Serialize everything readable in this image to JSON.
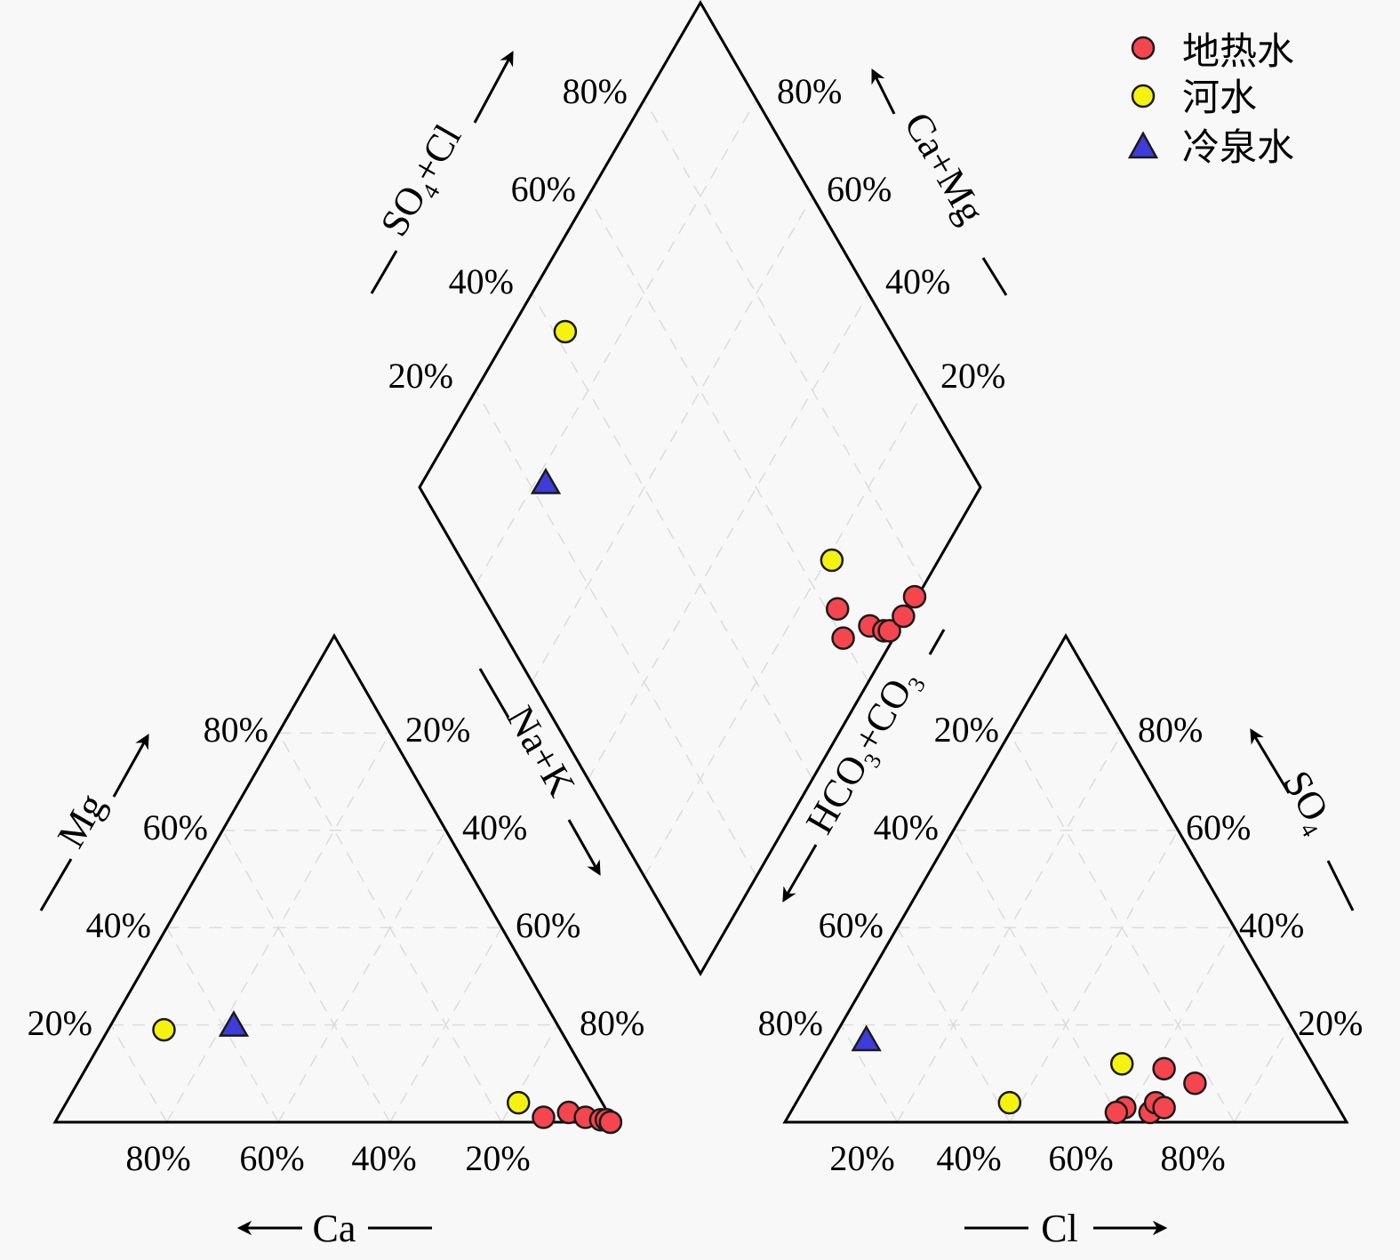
{
  "chart_data": {
    "type": "scatter",
    "subtype": "piper-trilinear",
    "title": "",
    "legend": {
      "placement": "top-right",
      "entries": [
        {
          "key": "geothermal",
          "label": "地热水",
          "marker": "circle",
          "color": "#f5454e"
        },
        {
          "key": "river",
          "label": "河水",
          "marker": "circle",
          "color": "#f4f20e"
        },
        {
          "key": "cold_spring",
          "label": "冷泉水",
          "marker": "triangle",
          "color": "#3d3ddb"
        }
      ]
    },
    "cation_triangle": {
      "axes": {
        "ca": {
          "label": "Ca",
          "direction": "left"
        },
        "mg": {
          "label": "Mg",
          "direction": "up"
        },
        "na_k": {
          "label": "Na+K",
          "direction": "down-right"
        }
      },
      "tick_labels_bottom": [
        "80%",
        "60%",
        "40%",
        "20%"
      ],
      "tick_labels_left": [
        "20%",
        "40%",
        "60%",
        "80%"
      ],
      "tick_labels_right": [
        "20%",
        "40%",
        "60%",
        "80%"
      ]
    },
    "anion_triangle": {
      "axes": {
        "cl": {
          "label": "Cl",
          "direction": "right"
        },
        "so4": {
          "label": "SO",
          "sub": "4",
          "direction": "up"
        },
        "hco3_co3": {
          "label": "HCO₃+CO₃",
          "direction": "down-left"
        }
      },
      "tick_labels_bottom": [
        "20%",
        "40%",
        "60%",
        "80%"
      ],
      "tick_labels_left": [
        "80%",
        "60%",
        "40%",
        "20%"
      ],
      "tick_labels_right": [
        "80%",
        "60%",
        "40%",
        "20%"
      ]
    },
    "diamond": {
      "axes": {
        "so4_cl": {
          "label": "SO₄+Cl",
          "direction": "up-right"
        },
        "ca_mg": {
          "label": "Ca+Mg",
          "direction": "up-left"
        }
      },
      "tick_labels_left": [
        "80%",
        "60%",
        "40%",
        "20%"
      ],
      "tick_labels_right": [
        "80%",
        "60%",
        "40%",
        "20%"
      ]
    },
    "axis_titles": {
      "ca": "Ca",
      "mg": "Mg",
      "na_k": "Na+K",
      "cl": "Cl",
      "so4": "SO",
      "so4_sub": "4",
      "hco3": "HCO",
      "hco3_sub": "3",
      "co3": "+CO",
      "co3_sub": "3",
      "so4cl_a": "SO",
      "so4cl_sub": "4",
      "so4cl_b": "+Cl",
      "camg": "Ca+Mg"
    },
    "series": [
      {
        "name": "地热水",
        "key": "geothermal",
        "samples": [
          {
            "ca": 12,
            "mg": 1,
            "na_k": 87,
            "hco3": 38,
            "so4": 3,
            "cl": 59
          },
          {
            "ca": 7,
            "mg": 2,
            "na_k": 91,
            "hco3": 40,
            "so4": 2,
            "cl": 58
          },
          {
            "ca": 4.5,
            "mg": 1,
            "na_k": 94.5,
            "hco3": 34,
            "so4": 2,
            "cl": 64
          },
          {
            "ca": 2,
            "mg": 0.5,
            "na_k": 97.5,
            "hco3": 32,
            "so4": 4,
            "cl": 64
          },
          {
            "ca": 1,
            "mg": 0.5,
            "na_k": 98.5,
            "hco3": 31,
            "so4": 3,
            "cl": 66
          },
          {
            "ca": 0.5,
            "mg": 0,
            "na_k": 99.5,
            "hco3": 27,
            "so4": 11,
            "cl": 62
          },
          {
            "ca": 0.5,
            "mg": 0,
            "na_k": 99.5,
            "hco3": 23,
            "so4": 8,
            "cl": 69
          }
        ]
      },
      {
        "name": "河水",
        "key": "river",
        "samples": [
          {
            "ca": 71,
            "mg": 19,
            "na_k": 10,
            "hco3": 58,
            "so4": 4,
            "cl": 38
          },
          {
            "ca": 15,
            "mg": 4,
            "na_k": 81,
            "hco3": 34,
            "so4": 12,
            "cl": 54
          }
        ]
      },
      {
        "name": "冷泉水",
        "key": "cold_spring",
        "samples": [
          {
            "ca": 58,
            "mg": 20,
            "na_k": 22,
            "hco3": 77,
            "so4": 17,
            "cl": 6
          }
        ]
      }
    ]
  }
}
